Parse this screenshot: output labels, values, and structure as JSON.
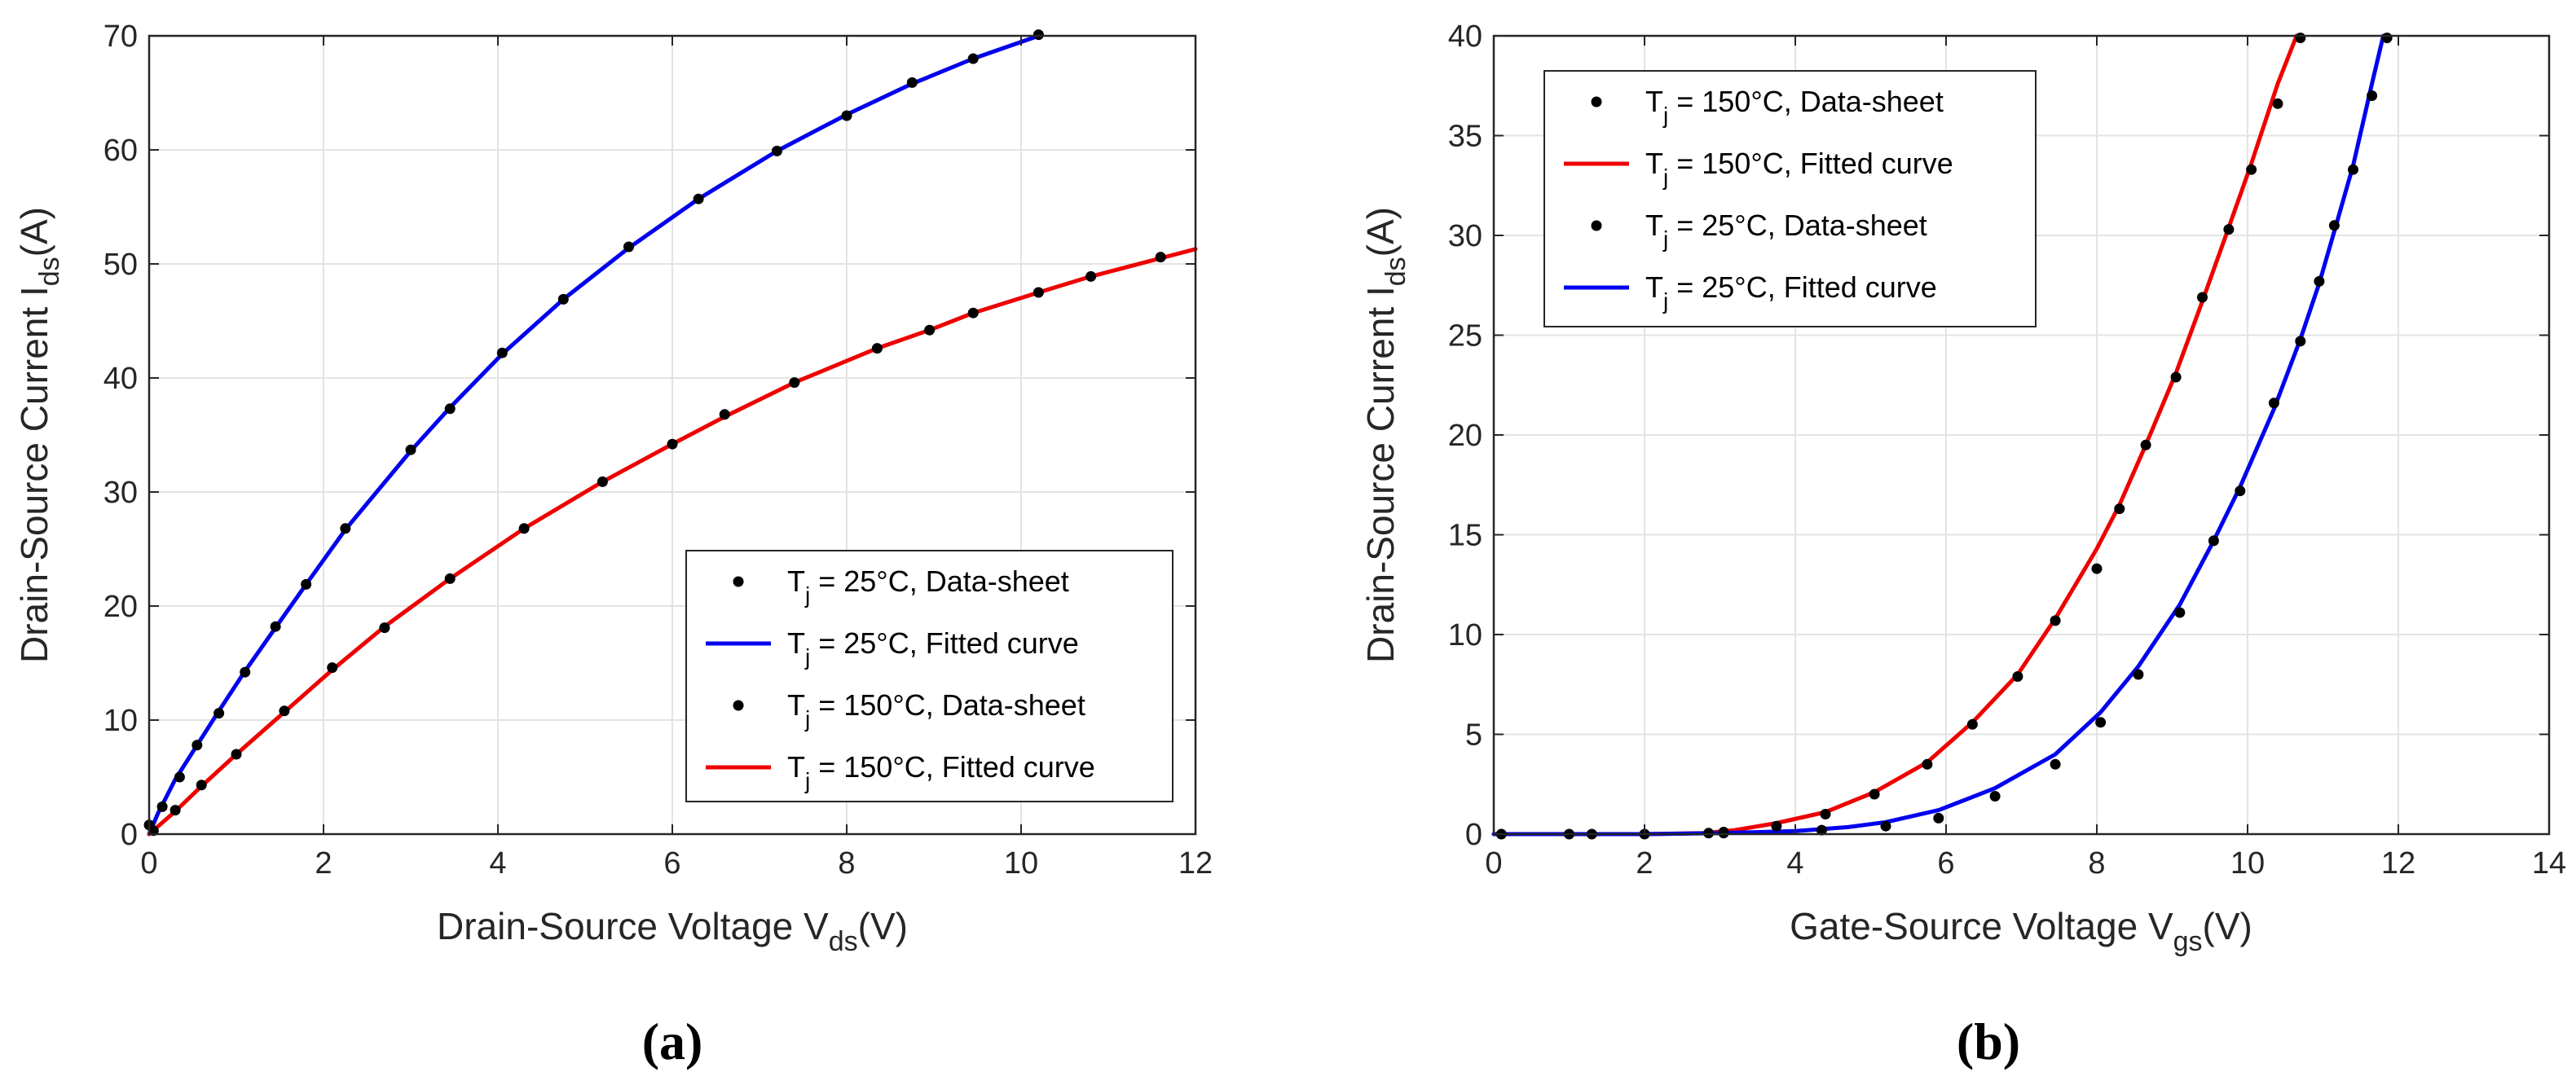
{
  "chart_data": [
    {
      "type": "scatter",
      "subplot_label": "(a)",
      "xlabel_main": "Drain-Source Voltage V",
      "xlabel_sub": "ds",
      "xlabel_end": "(V)",
      "ylabel_main": "Drain-Source Current I",
      "ylabel_sub": "ds",
      "ylabel_end": "(A)",
      "xlim": [
        0,
        12
      ],
      "ylim": [
        0,
        70
      ],
      "xticks": [
        0,
        2,
        4,
        6,
        8,
        10,
        12
      ],
      "yticks": [
        0,
        10,
        20,
        30,
        40,
        50,
        60,
        70
      ],
      "grid": true,
      "legend_position": "bottom-right",
      "series": [
        {
          "name": "T_j = 25°C, Data-sheet",
          "legend_pre": "T",
          "legend_sub": "j",
          "legend_post": " = 25°C, Data-sheet",
          "kind": "points",
          "color": "#000000",
          "x": [
            0.0,
            0.15,
            0.35,
            0.55,
            0.8,
            1.1,
            1.45,
            1.8,
            2.25,
            3.0,
            3.45,
            4.05,
            4.75,
            5.5,
            6.3,
            7.2,
            8.0,
            8.75,
            9.45,
            10.2
          ],
          "y": [
            0.8,
            2.4,
            5.0,
            7.8,
            10.6,
            14.2,
            18.2,
            21.9,
            26.8,
            33.7,
            37.3,
            42.2,
            46.9,
            51.5,
            55.7,
            59.9,
            63.0,
            65.9,
            68.0,
            70.1
          ]
        },
        {
          "name": "T_j = 25°C, Fitted curve",
          "legend_pre": "T",
          "legend_sub": "j",
          "legend_post": " = 25°C, Fitted curve",
          "kind": "line",
          "color": "#0000ee",
          "x": [
            0.0,
            0.1,
            0.3,
            0.55,
            0.8,
            1.1,
            1.45,
            1.8,
            2.25,
            3.0,
            3.45,
            4.05,
            4.75,
            5.5,
            6.3,
            7.2,
            8.0,
            8.75,
            9.45,
            10.2
          ],
          "y": [
            0.0,
            1.8,
            4.8,
            7.8,
            10.8,
            14.3,
            18.1,
            21.9,
            26.7,
            33.6,
            37.4,
            42.1,
            46.9,
            51.4,
            55.7,
            59.9,
            63.1,
            65.8,
            68.0,
            70.0
          ]
        },
        {
          "name": "T_j = 150°C, Data-sheet",
          "legend_pre": "T",
          "legend_sub": "j",
          "legend_post": " = 150°C, Data-sheet",
          "kind": "points",
          "color": "#000000",
          "x": [
            0.05,
            0.3,
            0.6,
            1.0,
            1.55,
            2.1,
            2.7,
            3.45,
            4.3,
            5.2,
            6.0,
            6.6,
            7.4,
            8.35,
            8.95,
            9.45,
            10.2,
            10.8,
            11.6
          ],
          "y": [
            0.3,
            2.1,
            4.3,
            7.0,
            10.8,
            14.6,
            18.1,
            22.4,
            26.8,
            30.9,
            34.2,
            36.8,
            39.6,
            42.6,
            44.2,
            45.7,
            47.5,
            48.9,
            50.6
          ]
        },
        {
          "name": "T_j = 150°C, Fitted curve",
          "legend_pre": "T",
          "legend_sub": "j",
          "legend_post": " = 150°C, Fitted curve",
          "kind": "line",
          "color": "#ee0000",
          "x": [
            0.0,
            0.3,
            0.6,
            1.0,
            1.55,
            2.1,
            2.7,
            3.45,
            4.3,
            5.2,
            6.0,
            6.6,
            7.4,
            8.35,
            8.95,
            9.45,
            10.2,
            10.8,
            11.6,
            12.0
          ],
          "y": [
            0.0,
            2.0,
            4.2,
            7.0,
            10.7,
            14.4,
            18.2,
            22.4,
            26.8,
            30.9,
            34.2,
            36.6,
            39.6,
            42.6,
            44.2,
            45.7,
            47.5,
            48.9,
            50.5,
            51.3
          ]
        }
      ]
    },
    {
      "type": "scatter",
      "subplot_label": "(b)",
      "xlabel_main": "Gate-Source Voltage V",
      "xlabel_sub": "gs",
      "xlabel_end": "(V)",
      "ylabel_main": "Drain-Source Current I",
      "ylabel_sub": "ds",
      "ylabel_end": "(A)",
      "xlim": [
        0,
        14
      ],
      "ylim": [
        0,
        40
      ],
      "xticks": [
        0,
        2,
        4,
        6,
        8,
        10,
        12,
        14
      ],
      "yticks": [
        0,
        5,
        10,
        15,
        20,
        25,
        30,
        35,
        40
      ],
      "grid": true,
      "legend_position": "top-left",
      "series": [
        {
          "name": "T_j = 150°C, Data-sheet",
          "legend_pre": "T",
          "legend_sub": "j",
          "legend_post": " = 150°C, Data-sheet",
          "kind": "points",
          "color": "#000000",
          "x": [
            0.1,
            1.0,
            1.3,
            2.0,
            2.85,
            3.05,
            3.75,
            4.4,
            5.05,
            5.75,
            6.35,
            6.95,
            7.45,
            8.0,
            8.3,
            8.65,
            9.05,
            9.4,
            9.75,
            10.05,
            10.4,
            10.7
          ],
          "y": [
            0.0,
            0.0,
            0.0,
            0.0,
            0.05,
            0.1,
            0.4,
            1.0,
            2.0,
            3.5,
            5.5,
            7.9,
            10.7,
            13.3,
            16.3,
            19.5,
            22.9,
            26.9,
            30.3,
            33.3,
            36.6,
            39.9
          ]
        },
        {
          "name": "T_j = 150°C, Fitted curve",
          "legend_pre": "T",
          "legend_sub": "j",
          "legend_post": " = 150°C, Fitted curve",
          "kind": "line",
          "color": "#ee0000",
          "x": [
            0.0,
            1.0,
            2.0,
            2.8,
            3.2,
            3.75,
            4.4,
            5.05,
            5.75,
            6.35,
            6.95,
            7.45,
            8.0,
            8.3,
            8.65,
            9.05,
            9.4,
            9.75,
            10.05,
            10.4,
            10.65
          ],
          "y": [
            0.0,
            0.0,
            0.0,
            0.05,
            0.2,
            0.55,
            1.1,
            2.1,
            3.6,
            5.6,
            8.0,
            10.8,
            14.3,
            16.5,
            19.5,
            23.1,
            26.7,
            30.4,
            33.6,
            37.6,
            40.0
          ]
        },
        {
          "name": "T_j = 25°C, Data-sheet",
          "legend_pre": "T",
          "legend_sub": "j",
          "legend_post": " = 25°C, Data-sheet",
          "kind": "points",
          "color": "#000000",
          "x": [
            3.05,
            4.35,
            5.2,
            5.9,
            6.65,
            7.45,
            8.05,
            8.55,
            9.1,
            9.55,
            9.9,
            10.35,
            10.7,
            10.95,
            11.15,
            11.4,
            11.65,
            11.85
          ],
          "y": [
            0.05,
            0.2,
            0.4,
            0.8,
            1.9,
            3.5,
            5.6,
            8.0,
            11.1,
            14.7,
            17.2,
            21.6,
            24.7,
            27.7,
            30.5,
            33.3,
            37.0,
            39.9
          ]
        },
        {
          "name": "T_j = 25°C, Fitted curve",
          "legend_pre": "T",
          "legend_sub": "j",
          "legend_post": " = 25°C, Fitted curve",
          "kind": "line",
          "color": "#0000ee",
          "x": [
            0.0,
            2.0,
            3.0,
            4.0,
            4.7,
            5.2,
            5.9,
            6.65,
            7.45,
            8.05,
            8.55,
            9.1,
            9.55,
            9.9,
            10.35,
            10.7,
            10.95,
            11.15,
            11.4,
            11.65,
            11.8
          ],
          "y": [
            0.0,
            0.0,
            0.05,
            0.15,
            0.35,
            0.6,
            1.2,
            2.3,
            4.0,
            6.1,
            8.4,
            11.5,
            14.7,
            17.4,
            21.3,
            24.8,
            27.6,
            30.2,
            33.5,
            37.6,
            40.0
          ]
        }
      ]
    }
  ]
}
